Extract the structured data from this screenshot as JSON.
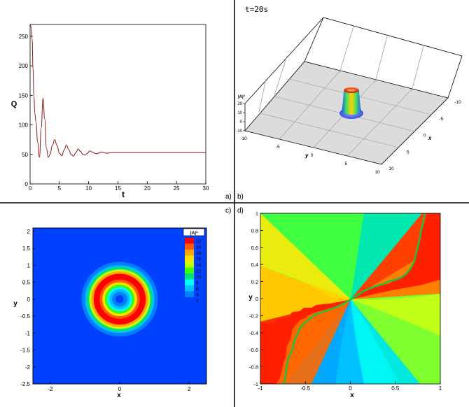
{
  "panels": {
    "a": {
      "label": "a)"
    },
    "b": {
      "label": "b)"
    },
    "c": {
      "label": "c)"
    },
    "d": {
      "label": "d)"
    }
  },
  "chart_data": [
    {
      "panel": "a)",
      "type": "line",
      "xlabel": "t",
      "ylabel": "Q",
      "xlim": [
        0,
        30
      ],
      "ylim": [
        0,
        270
      ],
      "x_ticks": [
        "0",
        "5",
        "10",
        "15",
        "20",
        "25",
        "30"
      ],
      "y_ticks": [
        "0",
        "50",
        "100",
        "150",
        "200",
        "250"
      ],
      "series": [
        {
          "color": "#8b1a1a",
          "x": [
            0.0,
            0.2,
            0.35,
            0.5,
            0.65,
            0.8,
            1.0,
            1.3,
            1.6,
            1.9,
            2.2,
            2.5,
            2.8,
            3.1,
            3.4,
            3.8,
            4.2,
            4.6,
            5.0,
            5.4,
            5.8,
            6.2,
            6.6,
            7.0,
            7.4,
            7.8,
            8.2,
            8.6,
            9.0,
            9.4,
            9.8,
            10.2,
            10.6,
            11.0,
            11.4,
            11.8,
            12.2,
            12.6,
            13.0,
            14.0,
            15.0,
            20.0,
            25.0,
            30.0
          ],
          "y": [
            270,
            265,
            245,
            195,
            150,
            120,
            105,
            70,
            45,
            95,
            145,
            110,
            60,
            45,
            50,
            65,
            75,
            65,
            52,
            48,
            57,
            66,
            58,
            50,
            47,
            53,
            59,
            55,
            50,
            49,
            52,
            56,
            54,
            52,
            51,
            53,
            54,
            53,
            52,
            53,
            53,
            53,
            53,
            53
          ]
        }
      ]
    },
    {
      "panel": "b)",
      "type": "surface3d",
      "title": "t=20s",
      "zlabel": "|A|²",
      "xlabel": "x",
      "ylabel": "y",
      "x_ticks": [
        "-10",
        "-5",
        "0",
        "5",
        "10"
      ],
      "y_ticks": [
        "-10",
        "-5",
        "0",
        "5",
        "10"
      ],
      "z_ticks": [
        "-10",
        "0",
        "10",
        "20"
      ],
      "peak_z": 25
    },
    {
      "panel": "c)",
      "type": "heatmap",
      "xlabel": "x",
      "ylabel": "y",
      "xlim": [
        -2.5,
        2.5
      ],
      "ylim": [
        -2.5,
        2.1
      ],
      "x_ticks": [
        "-2",
        "0",
        "2"
      ],
      "y_ticks": [
        "2",
        "1.5",
        "1",
        "0.5",
        "0",
        "-0.5",
        "-1",
        "-1.5",
        "-2",
        "-2.5"
      ],
      "legend_title": "|A|²",
      "legend_levels": [
        "22",
        "20",
        "18",
        "16",
        "14",
        "12",
        "10",
        "8",
        "6",
        "4",
        "2"
      ],
      "legend_colors": [
        "#ff0000",
        "#ff5a00",
        "#ffa800",
        "#ffe000",
        "#c8ff00",
        "#3cff00",
        "#00e080",
        "#00ffff",
        "#00c0ff",
        "#0080ff",
        "#0040ff"
      ],
      "rings": [
        {
          "r": 1.2,
          "level": "2"
        },
        {
          "r": 1.1,
          "level": "4"
        },
        {
          "r": 1.0,
          "level": "6"
        },
        {
          "r": 0.95,
          "level": "10"
        },
        {
          "r": 0.88,
          "level": "14"
        },
        {
          "r": 0.82,
          "level": "18"
        },
        {
          "r": 0.75,
          "level": "22"
        },
        {
          "r": 0.58,
          "level": "20"
        },
        {
          "r": 0.5,
          "level": "16"
        },
        {
          "r": 0.43,
          "level": "12"
        },
        {
          "r": 0.36,
          "level": "8"
        },
        {
          "r": 0.3,
          "level": "6"
        },
        {
          "r": 0.22,
          "level": "4"
        },
        {
          "r": 0.12,
          "level": "2"
        }
      ]
    },
    {
      "panel": "d)",
      "type": "heatmap",
      "xlabel": "x",
      "ylabel": "y",
      "xlim": [
        -1,
        1
      ],
      "ylim": [
        -1,
        1
      ],
      "x_ticks": [
        "-1",
        "-0.5",
        "0",
        "0.5",
        "1"
      ],
      "y_ticks": [
        "1",
        "0.8",
        "0.6",
        "0.4",
        "0.2",
        "0",
        "-0.2",
        "-0.4",
        "-0.6",
        "-0.8",
        "-1"
      ]
    }
  ]
}
